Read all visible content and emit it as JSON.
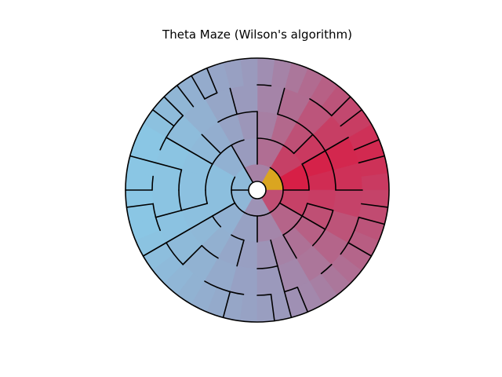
{
  "chart_data": {
    "type": "heatmap",
    "title": "Theta Maze (Wilson's algorithm)",
    "rings": [
      {
        "sectors": 6
      },
      {
        "sectors": 12
      },
      {
        "sectors": 24
      },
      {
        "sectors": 24
      },
      {
        "sectors": 48
      }
    ],
    "colors": {
      "start_cell": "#DAA520",
      "far_color": "#87CEEB",
      "near_color": "#DC143C",
      "mid_color": "#9A9ABD",
      "center_hole": "#FFFFFF",
      "walls": "#000000"
    },
    "gradient_direction": "distance from the gold start cell: crimson near, sky-blue at the far end"
  }
}
